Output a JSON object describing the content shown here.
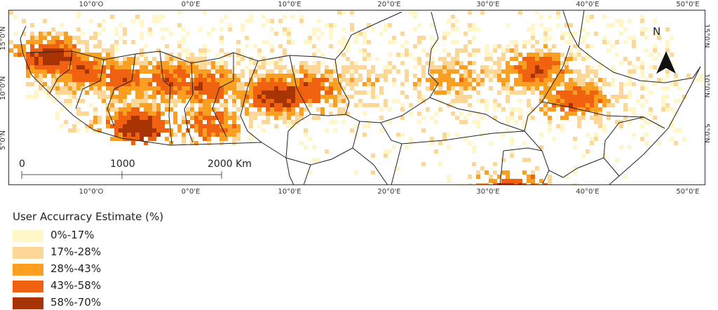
{
  "map": {
    "lon_ticks_top": [
      "10°0'O",
      "0°0'E",
      "10°0'E",
      "20°0'E",
      "30°0'E",
      "40°0'E",
      "50°0'E"
    ],
    "lon_ticks_bottom": [
      "10°0'O",
      "0°0'E",
      "10°0'E",
      "20°0'E",
      "30°0'E",
      "40°0'E",
      "50°0'E"
    ],
    "lat_ticks_left": [
      "15°0'N",
      "10°0'N",
      "5°0'N"
    ],
    "lat_ticks_right": [
      "15°0'N",
      "10°0'N",
      "5°0'N"
    ],
    "north_arrow_label": "N",
    "scale_bar": {
      "labels": [
        "0",
        "1000",
        "2000 Km"
      ]
    },
    "hotspots": [
      {
        "lon": -14.5,
        "lat": 14.8,
        "level": 4
      },
      {
        "lon": -11,
        "lat": 13.5,
        "level": 3
      },
      {
        "lon": -7,
        "lat": 12.6,
        "level": 3
      },
      {
        "lon": -2.5,
        "lat": 12.4,
        "level": 3
      },
      {
        "lon": 1,
        "lat": 11.8,
        "level": 3
      },
      {
        "lon": 8.5,
        "lat": 11.0,
        "level": 4
      },
      {
        "lon": 11.5,
        "lat": 11.5,
        "level": 3
      },
      {
        "lon": -5.5,
        "lat": 7.8,
        "level": 4
      },
      {
        "lon": 1.5,
        "lat": 8.0,
        "level": 3
      },
      {
        "lon": 34.5,
        "lat": 13.5,
        "level": 3
      },
      {
        "lon": 38.5,
        "lat": 10.5,
        "level": 3
      },
      {
        "lon": 32.5,
        "lat": 1.2,
        "level": 4
      },
      {
        "lon": 26,
        "lat": 12.5,
        "level": 2
      },
      {
        "lon": 18,
        "lat": 12.5,
        "level": 1
      }
    ]
  },
  "legend": {
    "title": "User Accurracy Estimate (%)",
    "items": [
      {
        "label": "0%-17%",
        "color": "#fff7c7"
      },
      {
        "label": "17%-28%",
        "color": "#fdd797"
      },
      {
        "label": "28%-43%",
        "color": "#fb9f22"
      },
      {
        "label": "43%-58%",
        "color": "#f0620f"
      },
      {
        "label": "58%-70%",
        "color": "#a83304"
      }
    ]
  }
}
